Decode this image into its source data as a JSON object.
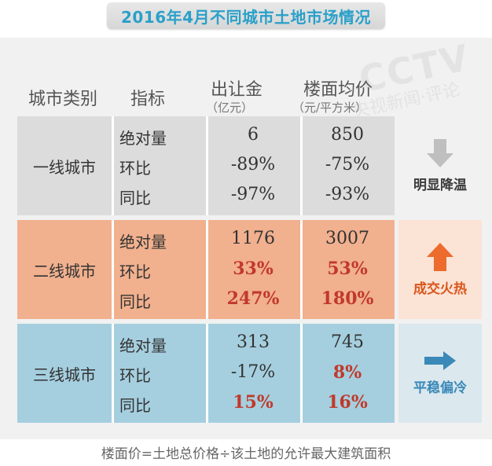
{
  "title": "2016年4月不同城市土地市场情况",
  "watermark": {
    "brand": "CCTV",
    "sub": "央视新闻·评论"
  },
  "headers": {
    "category": "城市类别",
    "indicator": "指标",
    "col1": "出让金",
    "col1_unit": "（亿元）",
    "col2": "楼面均价",
    "col2_unit": "（元/平方米）"
  },
  "rows": [
    {
      "label": "一线城市",
      "indicators": [
        "绝对量",
        "环比",
        "同比"
      ],
      "col1": [
        "6",
        "-89%",
        "-97%"
      ],
      "col2": [
        "850",
        "-75%",
        "-93%"
      ],
      "trend": "明显降温",
      "trend_icon": "arrow-down-icon",
      "colors": {
        "bg": "#dcdcdc",
        "side": "#f1f1f1",
        "trend_text": "#3b3b3b",
        "icon": "#bfbfbf"
      }
    },
    {
      "label": "二线城市",
      "indicators": [
        "绝对量",
        "环比",
        "同比"
      ],
      "col1": [
        "1176",
        "33%",
        "247%"
      ],
      "col2": [
        "3007",
        "53%",
        "180%"
      ],
      "trend": "成交火热",
      "trend_icon": "arrow-up-icon",
      "colors": {
        "bg": "#f1b08e",
        "side": "#fbe3d6",
        "trend_text": "#d9571d",
        "icon": "#ec6b2d"
      }
    },
    {
      "label": "三线城市",
      "indicators": [
        "绝对量",
        "环比",
        "同比"
      ],
      "col1": [
        "313",
        "-17%",
        "15%"
      ],
      "col2": [
        "745",
        "8%",
        "16%"
      ],
      "trend": "平稳偏冷",
      "trend_icon": "arrow-right-icon",
      "colors": {
        "bg": "#a5cfdf",
        "side": "#dbe8ee",
        "trend_text": "#3a89b8",
        "icon": "#3a89b8"
      }
    }
  ],
  "footnote": "楼面价=土地总价格÷该土地的允许最大建筑面积"
}
